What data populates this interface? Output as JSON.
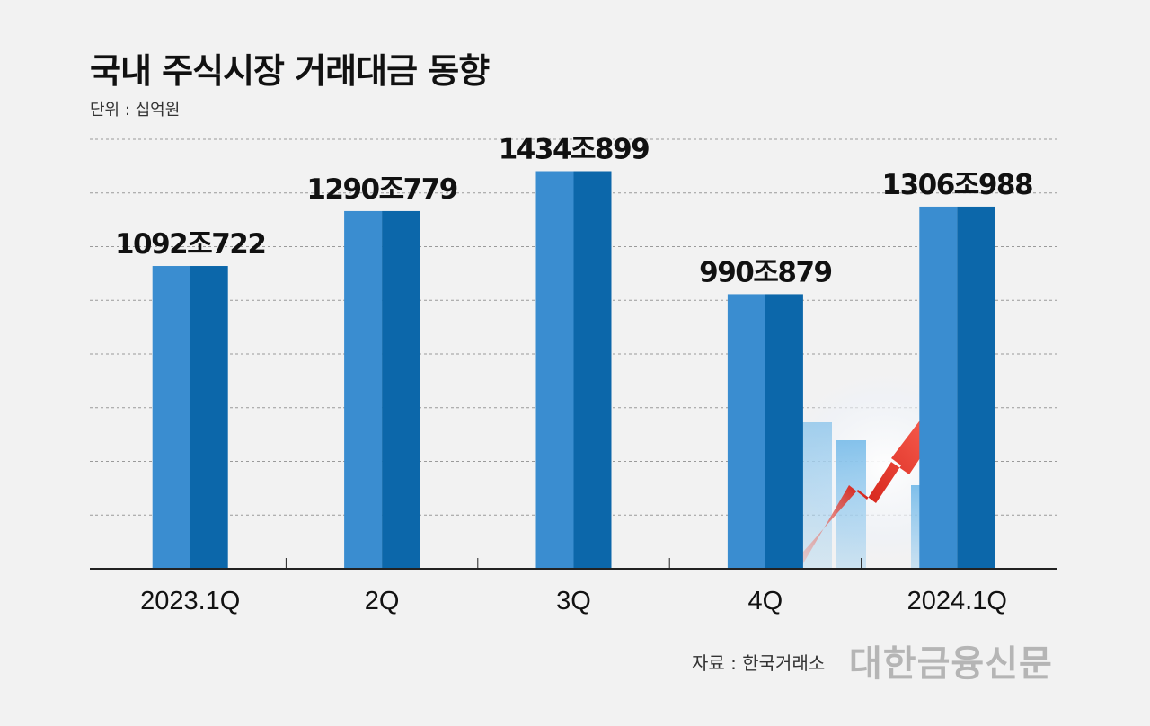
{
  "title": "국내 주식시장 거래대금 동향",
  "unit": "단위 : 십억원",
  "source": "자료 : 한국거래소",
  "brand": "대한금융신문",
  "colors": {
    "bar_light": "#3a8dd0",
    "bar_dark": "#0c67aa",
    "grid": "#9a9a9a",
    "axis": "#222222",
    "arrow": "#e23a33"
  },
  "decoration": {
    "icon": "growth-arrow-bars-icon"
  },
  "chart_data": {
    "type": "bar",
    "categories": [
      "2023.1Q",
      "2Q",
      "3Q",
      "4Q",
      "2024.1Q"
    ],
    "values": [
      1092722,
      1290779,
      1434899,
      990879,
      1306988
    ],
    "data_labels": [
      "1092조722",
      "1290조779",
      "1434조899",
      "990조879",
      "1306조988"
    ],
    "ylim": [
      0,
      1550000
    ],
    "grid": true
  }
}
